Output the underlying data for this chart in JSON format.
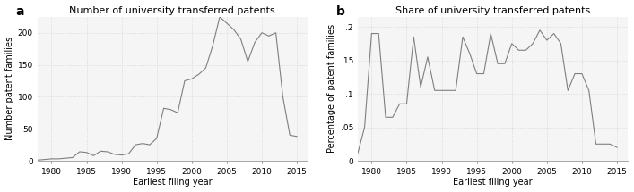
{
  "panel_a": {
    "title": "Number of university transferred patents",
    "xlabel": "Earliest filing year",
    "ylabel": "Number patent families",
    "years": [
      1978,
      1979,
      1980,
      1981,
      1982,
      1983,
      1984,
      1985,
      1986,
      1987,
      1988,
      1989,
      1990,
      1991,
      1992,
      1993,
      1994,
      1995,
      1996,
      1997,
      1998,
      1999,
      2000,
      2001,
      2002,
      2003,
      2004,
      2005,
      2006,
      2007,
      2008,
      2009,
      2010,
      2011,
      2012,
      2013,
      2014,
      2015
    ],
    "values": [
      1,
      2,
      3,
      3,
      4,
      5,
      14,
      13,
      8,
      15,
      14,
      10,
      9,
      11,
      25,
      27,
      25,
      35,
      82,
      80,
      75,
      125,
      128,
      135,
      145,
      180,
      225,
      215,
      205,
      190,
      155,
      185,
      200,
      195,
      200,
      100,
      40,
      38
    ],
    "ylim": [
      0,
      225
    ],
    "yticks": [
      0,
      50,
      100,
      150,
      200
    ],
    "xticks": [
      1980,
      1985,
      1990,
      1995,
      2000,
      2005,
      2010,
      2015
    ],
    "xlim": [
      1978,
      2016.5
    ]
  },
  "panel_b": {
    "title": "Share of university transferred patents",
    "xlabel": "Earliest filing year",
    "ylabel": "Percentage of patent families",
    "years": [
      1978,
      1979,
      1980,
      1981,
      1982,
      1983,
      1984,
      1985,
      1986,
      1987,
      1988,
      1989,
      1990,
      1991,
      1992,
      1993,
      1994,
      1995,
      1996,
      1997,
      1998,
      1999,
      2000,
      2001,
      2002,
      2003,
      2004,
      2005,
      2006,
      2007,
      2008,
      2009,
      2010,
      2011,
      2012,
      2013,
      2014,
      2015
    ],
    "values": [
      0.01,
      0.05,
      0.19,
      0.19,
      0.065,
      0.065,
      0.085,
      0.085,
      0.185,
      0.11,
      0.155,
      0.105,
      0.105,
      0.105,
      0.105,
      0.185,
      0.16,
      0.13,
      0.13,
      0.19,
      0.145,
      0.145,
      0.175,
      0.165,
      0.165,
      0.175,
      0.195,
      0.18,
      0.19,
      0.175,
      0.105,
      0.13,
      0.13,
      0.105,
      0.025,
      0.025,
      0.025,
      0.02
    ],
    "ylim": [
      0,
      0.215
    ],
    "yticks": [
      0,
      0.05,
      0.1,
      0.15,
      0.2
    ],
    "ytick_labels": [
      "0",
      ".05",
      ".1",
      ".15",
      ".2"
    ],
    "xticks": [
      1980,
      1985,
      1990,
      1995,
      2000,
      2005,
      2010,
      2015
    ],
    "xlim": [
      1978,
      2016.5
    ]
  },
  "line_color": "#7f7f7f",
  "grid_color": "#cccccc",
  "bg_color": "#f5f5f5",
  "label_a": "a",
  "label_b": "b",
  "title_fontsize": 8,
  "label_fontsize": 10,
  "axis_label_fontsize": 7,
  "tick_fontsize": 6.5
}
